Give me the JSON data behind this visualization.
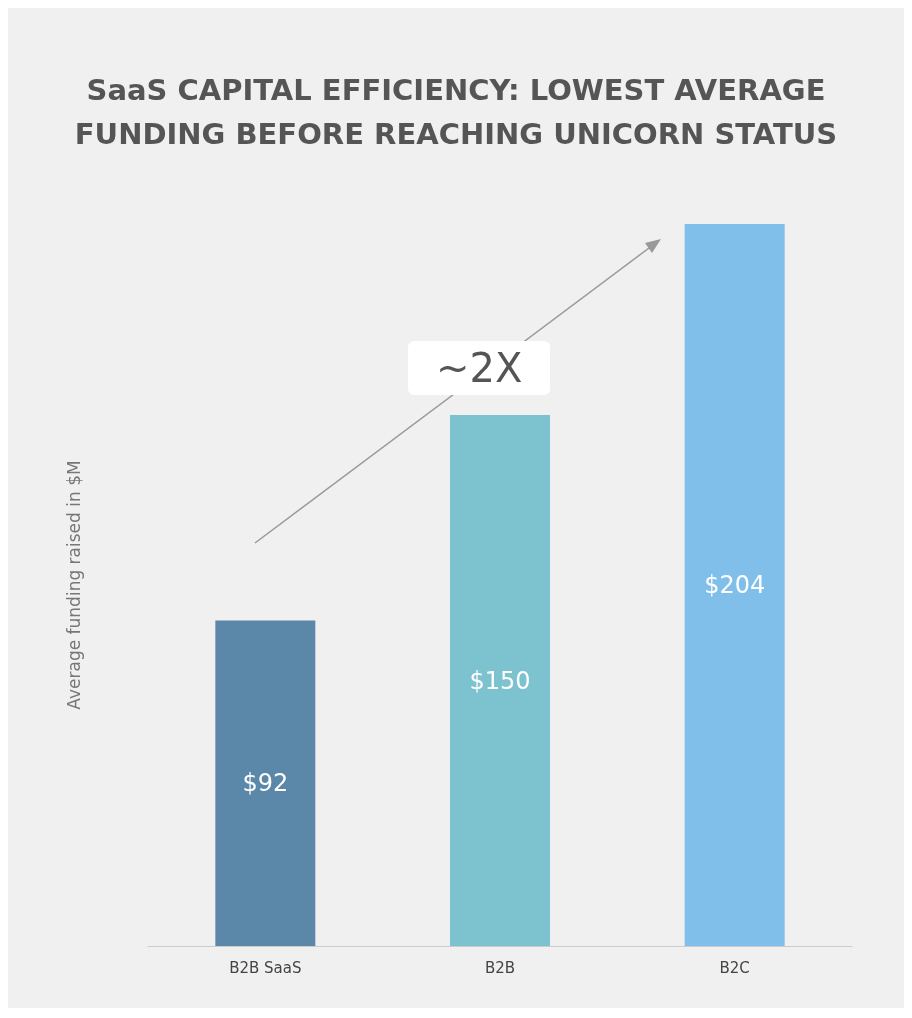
{
  "chart_data": {
    "type": "bar",
    "title": "SaaS CAPITAL EFFICIENCY: LOWEST AVERAGE\nFUNDING BEFORE REACHING UNICORN STATUS",
    "ylabel": "Average funding raised in $M",
    "categories": [
      "B2B SaaS",
      "B2B",
      "B2C"
    ],
    "values": [
      92,
      150,
      204
    ],
    "colors": [
      "#5b87a8",
      "#7cc3cf",
      "#7fbfea"
    ],
    "value_labels": [
      "$92",
      "$150",
      "$204"
    ],
    "annotations": [
      "~2X"
    ],
    "tick_labels": "x"
  }
}
